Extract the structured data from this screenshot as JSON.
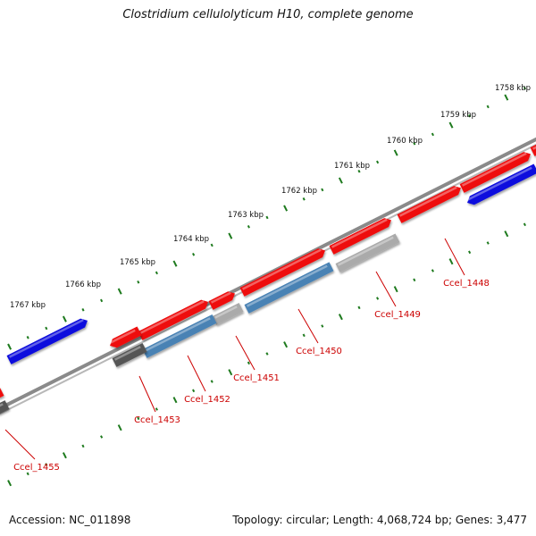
{
  "title": "Clostridium cellulolyticum H10, complete genome",
  "footer": {
    "accession": "Accession: NC_011898",
    "summary": "Topology: circular; Length: 4,068,724 bp; Genes: 3,477"
  },
  "colors": {
    "backbone": "#8a8a8a",
    "tick": "#1e7a1e",
    "forward_gene": "#ee1111",
    "reverse_gene_blue": "#1010dd",
    "reverse_gene_steel": "#4a82b4",
    "reverse_gene_gray": "#aaaaaa",
    "reverse_gene_dark": "#555555",
    "label": "#cc0000"
  },
  "scale": {
    "unit": "kbp",
    "labels": [
      "1758 kbp",
      "1759 kbp",
      "1760 kbp",
      "1761 kbp",
      "1762 kbp",
      "1763 kbp",
      "1764 kbp",
      "1765 kbp",
      "1766 kbp",
      "1767 kbp"
    ]
  },
  "gene_labels": [
    "Ccel_1448",
    "Ccel_1449",
    "Ccel_1450",
    "Ccel_1451",
    "Ccel_1452",
    "Ccel_1453",
    "Ccel_1455"
  ]
}
